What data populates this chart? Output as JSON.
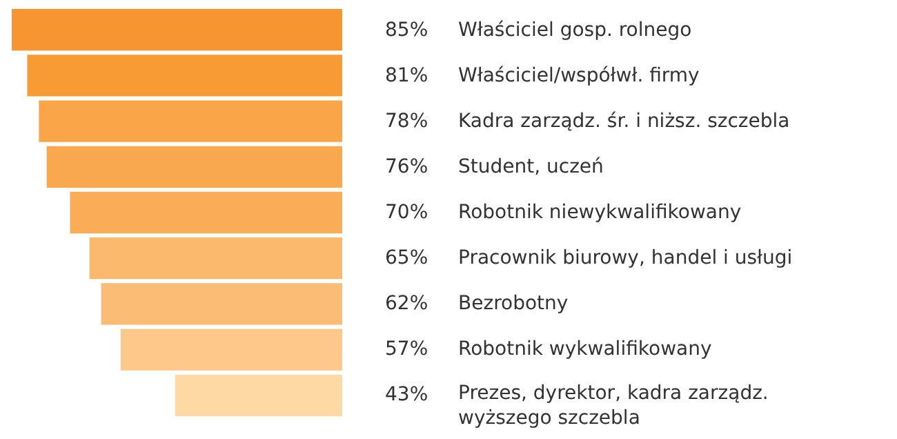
{
  "chart_data": {
    "type": "bar",
    "orientation": "horizontal",
    "categories": [
      "Właściciel gosp. rolnego",
      "Właściciel/współwł. firmy",
      "Kadra zarządz. śr. i niższ. szczebla",
      "Student, uczeń",
      "Robotnik niewykwalifikowany",
      "Pracownik biurowy, handel i usługi",
      "Bezrobotny",
      "Robotnik wykwalifikowany",
      "Prezes, dyrektor, kadra zarządz.\nwyższego szczebla"
    ],
    "values": [
      85,
      81,
      78,
      76,
      70,
      65,
      62,
      57,
      43
    ],
    "value_labels": [
      "85%",
      "81%",
      "78%",
      "76%",
      "70%",
      "65%",
      "62%",
      "57%",
      "43%"
    ],
    "colors": [
      "#f7962e",
      "#f89b33",
      "#f9a548",
      "#f9a84e",
      "#faac56",
      "#fbb96e",
      "#fbbd75",
      "#fcc98b",
      "#fdd9a3"
    ],
    "xlim": [
      88,
      0
    ],
    "grid": false,
    "legend": false
  }
}
